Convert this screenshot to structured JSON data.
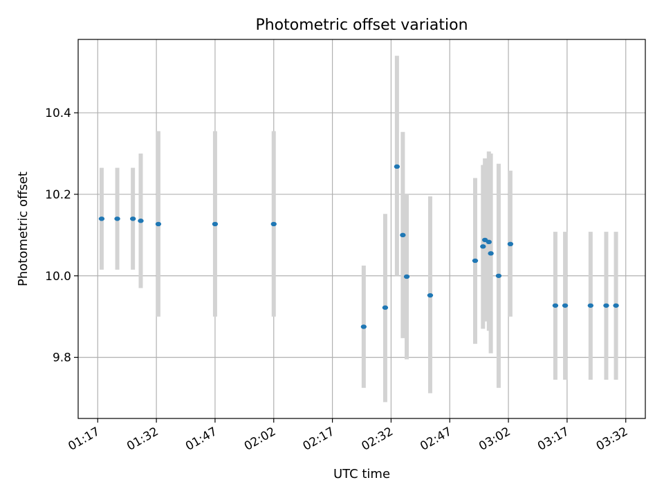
{
  "chart_data": {
    "type": "scatter",
    "title": "Photometric offset variation",
    "xlabel": "UTC time",
    "ylabel": "Photometric offset",
    "grid": true,
    "x_tick_labels": [
      "01:17",
      "01:32",
      "01:47",
      "02:02",
      "02:17",
      "02:32",
      "02:47",
      "03:02",
      "03:17",
      "03:32"
    ],
    "y_ticks": [
      9.8,
      10.0,
      10.2,
      10.4
    ],
    "y_tick_labels": [
      "9.8",
      "10.0",
      "10.2",
      "10.4"
    ],
    "x_range": [
      "01:12",
      "03:37"
    ],
    "ylim": [
      9.65,
      10.58
    ],
    "colors": {
      "point": "#1f77b4",
      "error_bar": "#d3d3d3",
      "grid": "#b0b0b0"
    },
    "points": [
      {
        "x": "01:18",
        "y": 10.14,
        "lo": 10.015,
        "hi": 10.265
      },
      {
        "x": "01:22",
        "y": 10.14,
        "lo": 10.015,
        "hi": 10.265
      },
      {
        "x": "01:26",
        "y": 10.14,
        "lo": 10.015,
        "hi": 10.265
      },
      {
        "x": "01:28",
        "y": 10.135,
        "lo": 9.97,
        "hi": 10.3
      },
      {
        "x": "01:32.5",
        "y": 10.127,
        "lo": 9.9,
        "hi": 10.355
      },
      {
        "x": "01:47",
        "y": 10.127,
        "lo": 9.9,
        "hi": 10.355
      },
      {
        "x": "02:02",
        "y": 10.127,
        "lo": 9.9,
        "hi": 10.355
      },
      {
        "x": "02:25",
        "y": 9.875,
        "lo": 9.725,
        "hi": 10.025
      },
      {
        "x": "02:30.5",
        "y": 9.922,
        "lo": 9.69,
        "hi": 10.152
      },
      {
        "x": "02:33.5",
        "y": 10.268,
        "lo": 10.0,
        "hi": 10.54
      },
      {
        "x": "02:35",
        "y": 10.1,
        "lo": 9.847,
        "hi": 10.353
      },
      {
        "x": "02:36",
        "y": 9.998,
        "lo": 9.795,
        "hi": 10.2
      },
      {
        "x": "02:42",
        "y": 9.952,
        "lo": 9.712,
        "hi": 10.195
      },
      {
        "x": "02:53.5",
        "y": 10.037,
        "lo": 9.833,
        "hi": 10.24
      },
      {
        "x": "02:55.5",
        "y": 10.072,
        "lo": 9.87,
        "hi": 10.272
      },
      {
        "x": "02:56",
        "y": 10.088,
        "lo": 9.888,
        "hi": 10.288
      },
      {
        "x": "02:57",
        "y": 10.083,
        "lo": 9.865,
        "hi": 10.305
      },
      {
        "x": "02:57.5",
        "y": 10.055,
        "lo": 9.81,
        "hi": 10.3
      },
      {
        "x": "02:59.5",
        "y": 10.0,
        "lo": 9.725,
        "hi": 10.275
      },
      {
        "x": "03:02.5",
        "y": 10.078,
        "lo": 9.9,
        "hi": 10.258
      },
      {
        "x": "03:14",
        "y": 9.927,
        "lo": 9.745,
        "hi": 10.108
      },
      {
        "x": "03:16.5",
        "y": 9.927,
        "lo": 9.745,
        "hi": 10.108
      },
      {
        "x": "03:23",
        "y": 9.927,
        "lo": 9.745,
        "hi": 10.108
      },
      {
        "x": "03:27",
        "y": 9.927,
        "lo": 9.745,
        "hi": 10.108
      },
      {
        "x": "03:29.5",
        "y": 9.927,
        "lo": 9.745,
        "hi": 10.108
      }
    ]
  }
}
